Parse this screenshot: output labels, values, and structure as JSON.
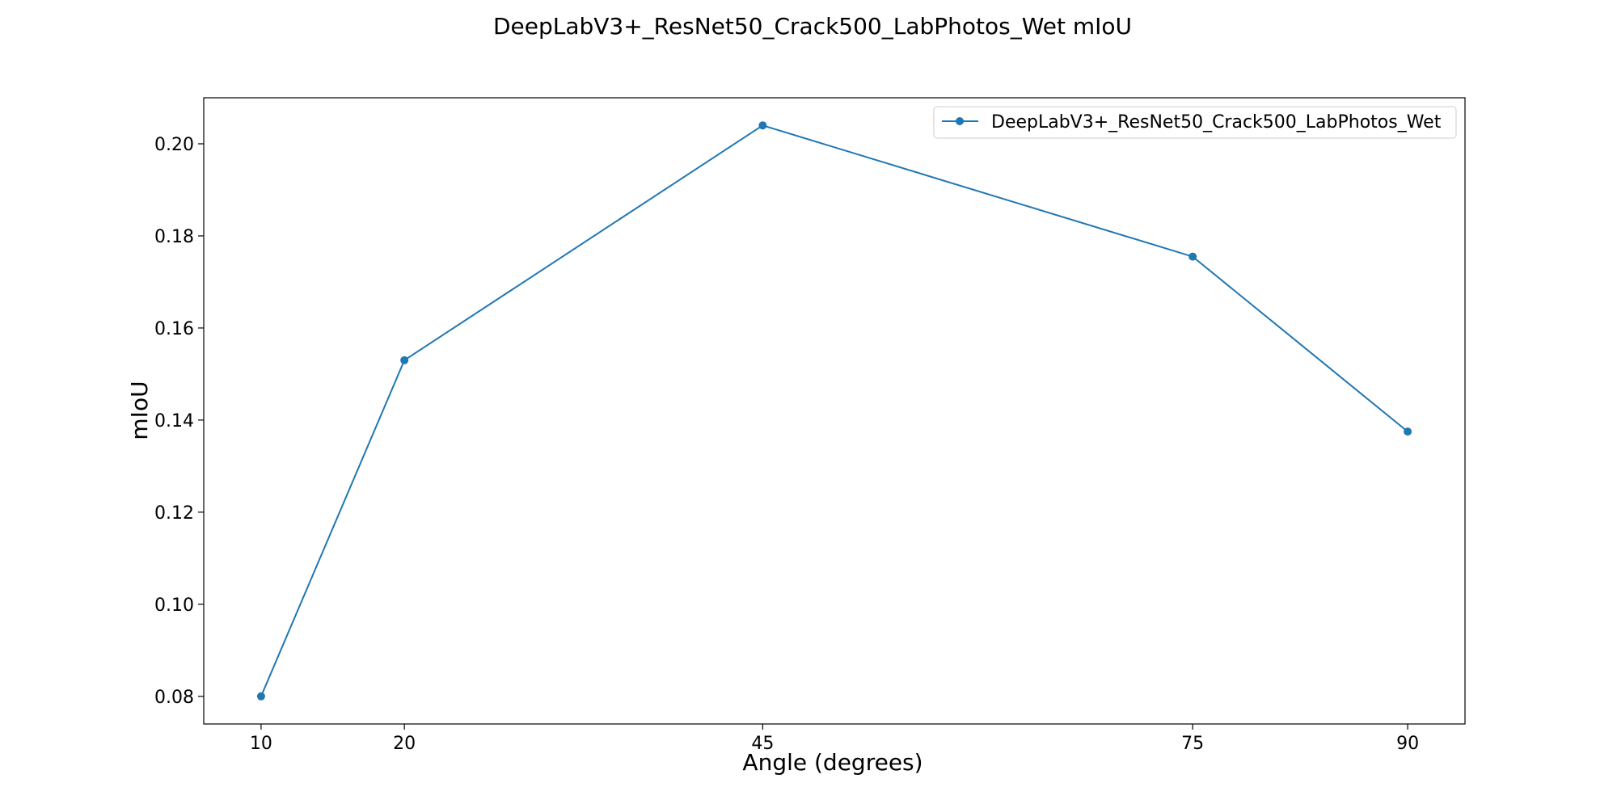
{
  "chart_data": {
    "type": "line",
    "title": "DeepLabV3+_ResNet50_Crack500_LabPhotos_Wet mIoU",
    "xlabel": "Angle (degrees)",
    "ylabel": "mIoU",
    "x": [
      10,
      20,
      45,
      75,
      90
    ],
    "x_ticks": [
      10,
      20,
      45,
      75,
      90
    ],
    "xlim": [
      6,
      94
    ],
    "ylim": [
      0.074,
      0.21
    ],
    "y_ticks": [
      "0.08",
      "0.10",
      "0.12",
      "0.14",
      "0.16",
      "0.18",
      "0.20"
    ],
    "grid": false,
    "legend_position": "top-right",
    "series": [
      {
        "name": "DeepLabV3+_ResNet50_Crack500_LabPhotos_Wet",
        "values": [
          0.08,
          0.153,
          0.204,
          0.1755,
          0.1375
        ],
        "color": "#1f77b4",
        "marker": "circle"
      }
    ]
  }
}
